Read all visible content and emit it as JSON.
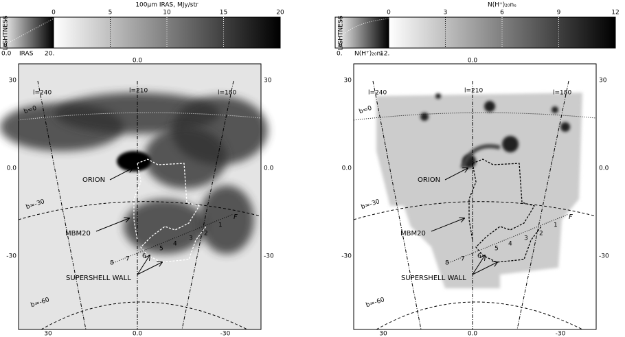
{
  "panels": [
    {
      "colorbar": {
        "title": "100μm IRAS, MJy/str",
        "ticks": [
          "0",
          "5",
          "10",
          "15",
          "20"
        ],
        "lightness_label": "LIGHTNESS",
        "lightness_ticks": [
          "1",
          "0"
        ],
        "bottom_labels": [
          "0.0",
          "IRAS",
          "20."
        ]
      },
      "axes": {
        "top": "0.0",
        "left": [
          "30",
          "0.0",
          "-30"
        ],
        "right": [
          "30",
          "0.0",
          "-30"
        ],
        "bottom": [
          "30",
          "0.0",
          "-30"
        ]
      },
      "annotations": {
        "longitudes": [
          "l=240",
          "l=210",
          "l=180"
        ],
        "latitudes": [
          "b=0",
          "b=-30",
          "b=-60"
        ],
        "labels": [
          "ORION",
          "MBM20",
          "SUPERSHELL WALL",
          "F"
        ],
        "path_numbers": [
          "1",
          "2",
          "3",
          "4",
          "5",
          "6",
          "7",
          "8"
        ]
      }
    },
    {
      "colorbar": {
        "title": "N(H⁺)₂₀nₑ",
        "ticks": [
          "0",
          "3",
          "6",
          "9",
          "12"
        ],
        "lightness_label": "LIGHTNESS",
        "lightness_ticks": [
          "1",
          "0"
        ],
        "bottom_labels": [
          "0.",
          "N(H⁺)₂₀nₑ",
          "12."
        ]
      },
      "axes": {
        "top": "0.0",
        "left": [
          "30",
          "0.0",
          "-30"
        ],
        "right": [
          "30",
          "0.0",
          "-30"
        ],
        "bottom": [
          "30",
          "0.0",
          "-30"
        ]
      },
      "annotations": {
        "longitudes": [
          "l=240",
          "l=210",
          "l=180"
        ],
        "latitudes": [
          "b=0",
          "b=-30",
          "b=-60"
        ],
        "labels": [
          "ORION",
          "MBM20",
          "SUPERSHELL WALL",
          "F"
        ],
        "path_numbers": [
          "1",
          "2",
          "3",
          "4",
          "5",
          "6",
          "7",
          "8"
        ]
      }
    }
  ]
}
